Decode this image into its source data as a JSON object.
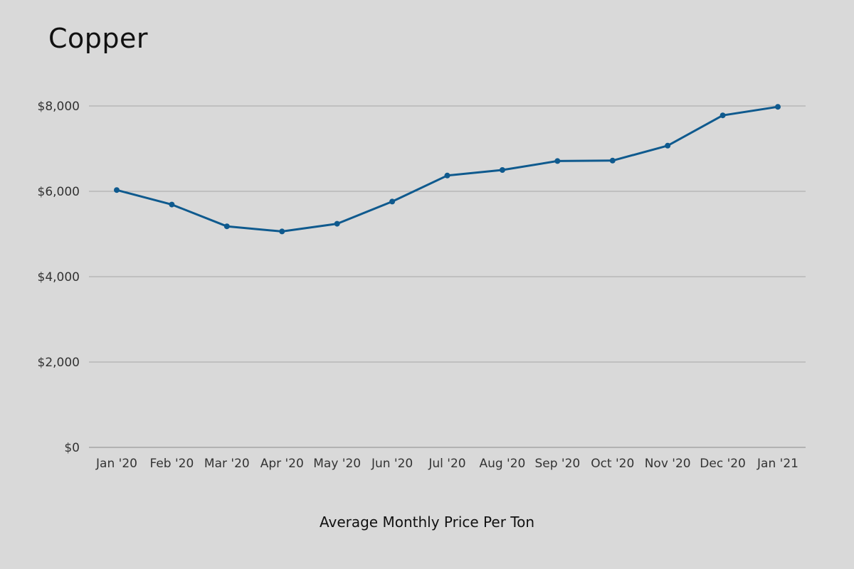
{
  "chart_data": {
    "type": "line",
    "title": "Copper",
    "xlabel": "Average Monthly Price Per Ton",
    "ylabel": "",
    "categories": [
      "Jan '20",
      "Feb '20",
      "Mar '20",
      "Apr '20",
      "May '20",
      "Jun '20",
      "Jul '20",
      "Aug '20",
      "Sep '20",
      "Oct '20",
      "Nov '20",
      "Dec '20",
      "Jan '21"
    ],
    "series": [
      {
        "values": [
          6030,
          5690,
          5180,
          5060,
          5240,
          5760,
          6370,
          6500,
          6710,
          6720,
          7070,
          7780,
          7980
        ]
      }
    ],
    "ylim": [
      0,
      8000
    ],
    "yticks": [
      0,
      2000,
      4000,
      6000,
      8000
    ],
    "ytick_labels": [
      "$0",
      "$2,000",
      "$4,000",
      "$6,000",
      "$8,000"
    ],
    "grid": true,
    "legend": "none",
    "colors": {
      "line": "#0f5a8e",
      "grid": "#a6a6a6",
      "background": "#d9d9d9"
    }
  }
}
